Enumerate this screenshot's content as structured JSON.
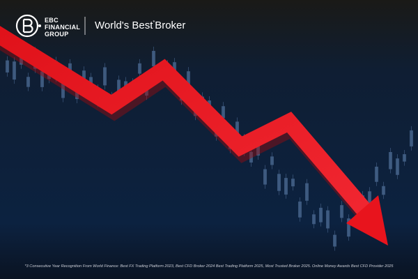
{
  "logo": {
    "line1": "EBC",
    "line2": "FINANCIAL",
    "line3": "GROUP"
  },
  "tagline": {
    "lead": "World's Best",
    "mark": "*",
    "tail": "Broker"
  },
  "footnote": "*3 Consecutive Year Recognition From World Finance: Best FX Trading Platform 2023, Best CFD Broker 2024 Best Trading Platform 2025, Most Trusted Broker 2025. Online Money Awards Best CFD Provider 2025"
}
